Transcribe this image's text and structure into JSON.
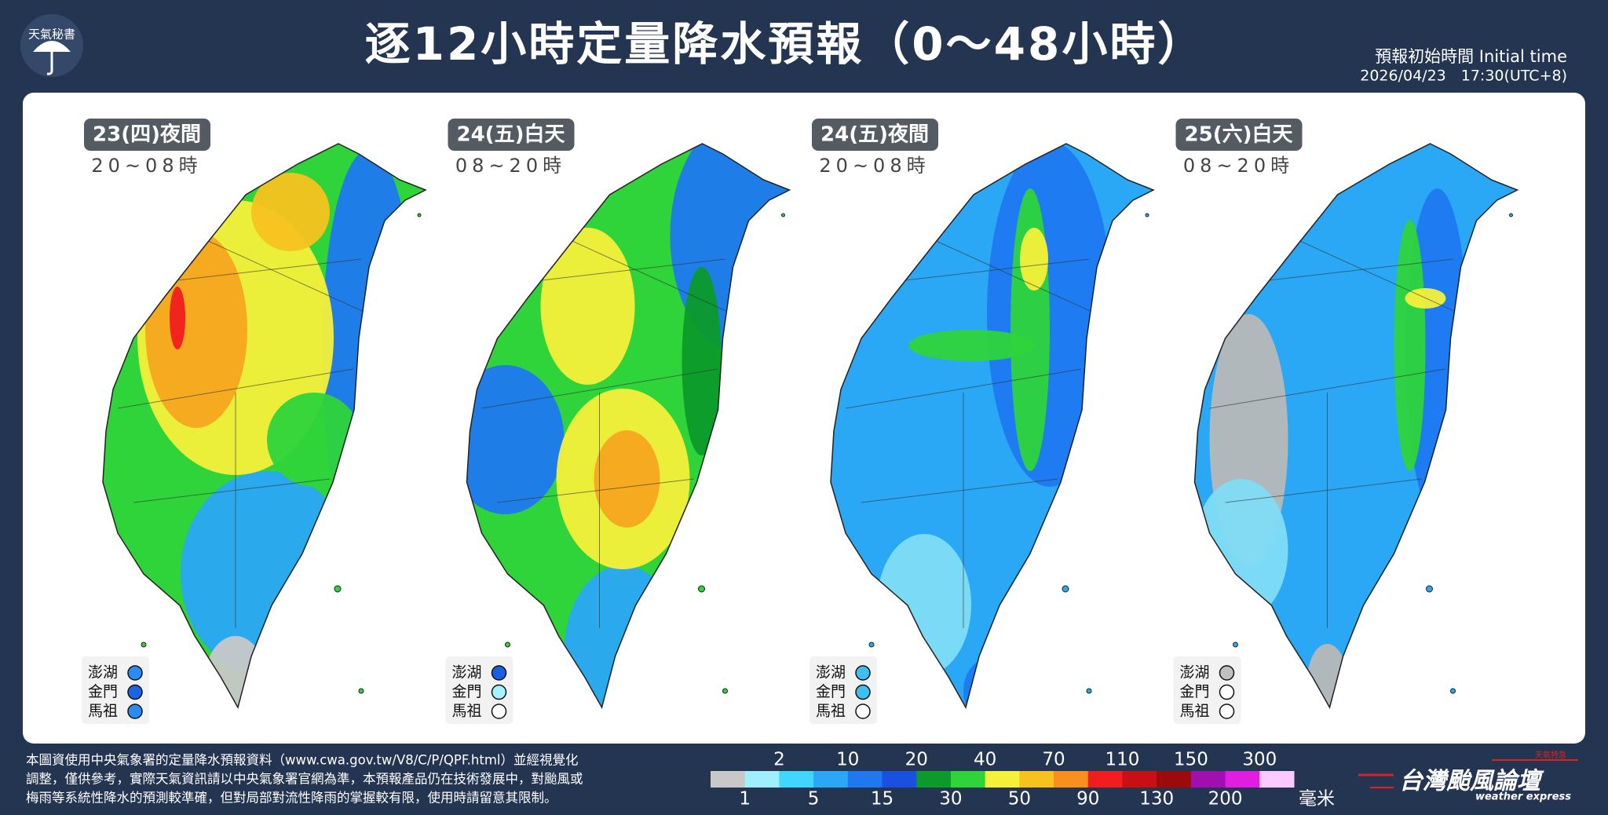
{
  "logo": "天氣秘書",
  "title": "逐12小時定量降水預報（0～48小時）",
  "initial_time": {
    "label": "預報初始時間 Initial time",
    "value": "2026/04/23　17:30(UTC+8)"
  },
  "panels": [
    {
      "label": "23(四)夜間",
      "hours": "20~08時",
      "islands": [
        {
          "name": "澎湖",
          "color": "#2a8cf0"
        },
        {
          "name": "金門",
          "color": "#1a66e0"
        },
        {
          "name": "馬祖",
          "color": "#2a8cf0"
        }
      ]
    },
    {
      "label": "24(五)白天",
      "hours": "08~20時",
      "islands": [
        {
          "name": "澎湖",
          "color": "#1a5fe0"
        },
        {
          "name": "金門",
          "color": "#a8f2ff"
        },
        {
          "name": "馬祖",
          "color": "#ffffff"
        }
      ]
    },
    {
      "label": "24(五)夜間",
      "hours": "20~08時",
      "islands": [
        {
          "name": "澎湖",
          "color": "#3fbff0"
        },
        {
          "name": "金門",
          "color": "#3fbff0"
        },
        {
          "name": "馬祖",
          "color": "#ffffff"
        }
      ]
    },
    {
      "label": "25(六)白天",
      "hours": "08~20時",
      "islands": [
        {
          "name": "澎湖",
          "color": "#c0c0c0"
        },
        {
          "name": "金門",
          "color": "#ffffff"
        },
        {
          "name": "馬祖",
          "color": "#ffffff"
        }
      ]
    }
  ],
  "note": [
    "本圖資使用中央氣象署的定量降水預報資料（www.cwa.gov.tw/V8/C/P/QPF.html）並經視覺化",
    "調整，僅供參考，實際天氣資訊請以中央氣象署官網為準，本預報產品仍在技術發展中，對颱風或",
    "梅雨等系統性降水的預測較準確，但對局部對流性降雨的掌握較有限，使用時請留意其限制。"
  ],
  "legend": {
    "colors": [
      "#c8c8c8",
      "#9ff0ff",
      "#3fd6ff",
      "#2aa8f5",
      "#1f78f0",
      "#1a50e0",
      "#0c9a2a",
      "#2ed43a",
      "#f5f03a",
      "#f7c21e",
      "#f7901e",
      "#f01e1e",
      "#c80f14",
      "#9c0a0a",
      "#a010b0",
      "#e01ee0",
      "#ffc8ff"
    ],
    "ticks": [
      1,
      2,
      5,
      10,
      15,
      20,
      30,
      40,
      50,
      70,
      90,
      110,
      130,
      150,
      200,
      300
    ],
    "unit": "毫米"
  },
  "brand": {
    "name": "台灣颱風論壇",
    "tagline": "weather express",
    "badge": "天氣特急"
  }
}
